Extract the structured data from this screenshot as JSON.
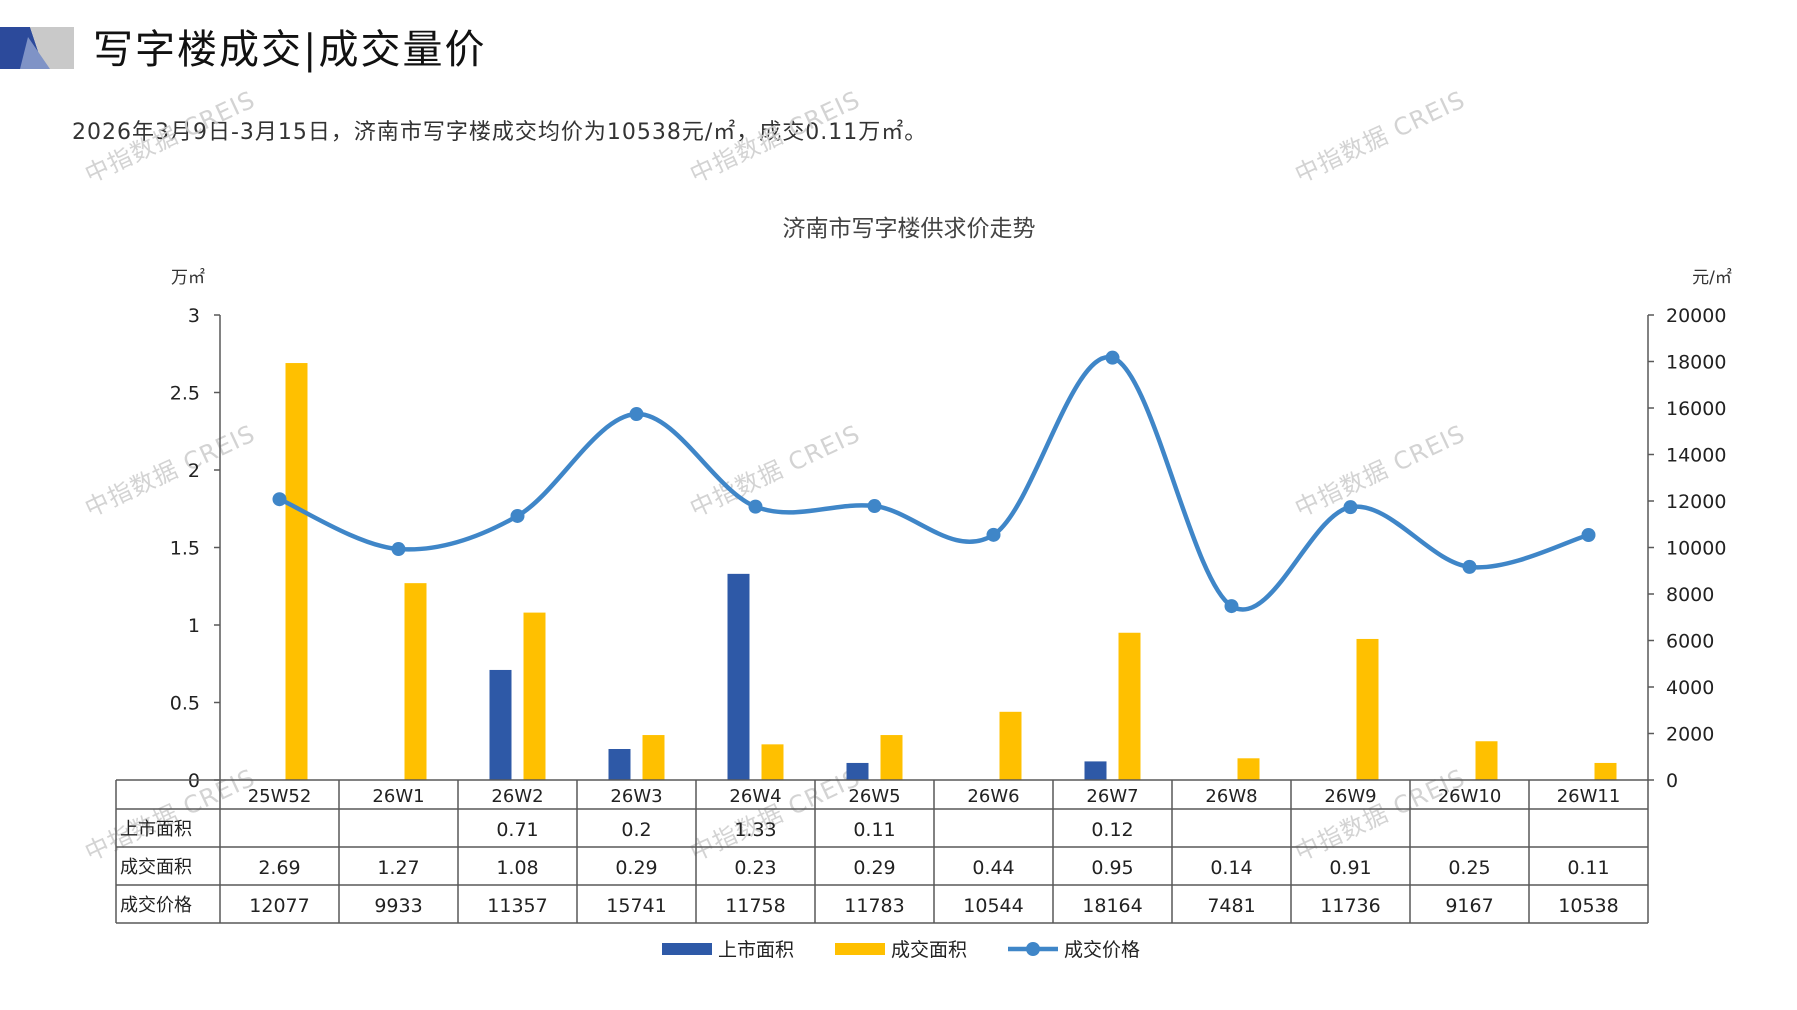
{
  "page": {
    "title": "写字楼成交|成交量价",
    "summary": "2026年3月9日-3月15日，济南市写字楼成交均价为10538元/㎡，成交0.11万㎡。",
    "watermark": "中指数据 CREIS"
  },
  "colors": {
    "supply": "#2e59a7",
    "deal_area": "#ffc000",
    "price": "#3f86c8",
    "axis": "#595959",
    "header_dark": "#2c4a9b",
    "header_light": "#c9c9c9"
  },
  "chart_data": {
    "type": "bar",
    "title": "济南市写字楼供求价走势",
    "ylabel_left": "万㎡",
    "ylabel_right": "元/㎡",
    "ylim_left": [
      0,
      3
    ],
    "ylim_right": [
      0,
      20000
    ],
    "yticks_left": [
      "0",
      "0.5",
      "1",
      "1.5",
      "2",
      "2.5",
      "3"
    ],
    "yticks_right": [
      "0",
      "2000",
      "4000",
      "6000",
      "8000",
      "10000",
      "12000",
      "14000",
      "16000",
      "18000",
      "20000"
    ],
    "categories": [
      "25W52",
      "26W1",
      "26W2",
      "26W3",
      "26W4",
      "26W5",
      "26W6",
      "26W7",
      "26W8",
      "26W9",
      "26W10",
      "26W11"
    ],
    "series": [
      {
        "name": "上市面积",
        "kind": "bar",
        "axis": "left",
        "values": [
          null,
          null,
          0.71,
          0.2,
          1.33,
          0.11,
          null,
          0.12,
          null,
          null,
          null,
          null
        ],
        "labels": [
          "",
          "",
          "0.71",
          "0.2",
          "1.33",
          "0.11",
          "",
          "0.12",
          "",
          "",
          "",
          ""
        ]
      },
      {
        "name": "成交面积",
        "kind": "bar",
        "axis": "left",
        "values": [
          2.69,
          1.27,
          1.08,
          0.29,
          0.23,
          0.29,
          0.44,
          0.95,
          0.14,
          0.91,
          0.25,
          0.11
        ],
        "labels": [
          "2.69",
          "1.27",
          "1.08",
          "0.29",
          "0.23",
          "0.29",
          "0.44",
          "0.95",
          "0.14",
          "0.91",
          "0.25",
          "0.11"
        ]
      },
      {
        "name": "成交价格",
        "kind": "line",
        "axis": "right",
        "values": [
          12077,
          9933,
          11357,
          15741,
          11758,
          11783,
          10544,
          18164,
          7481,
          11736,
          9167,
          10538
        ],
        "labels": [
          "12077",
          "9933",
          "11357",
          "15741",
          "11758",
          "11783",
          "10544",
          "18164",
          "7481",
          "11736",
          "9167",
          "10538"
        ]
      }
    ],
    "legend_position": "bottom"
  }
}
